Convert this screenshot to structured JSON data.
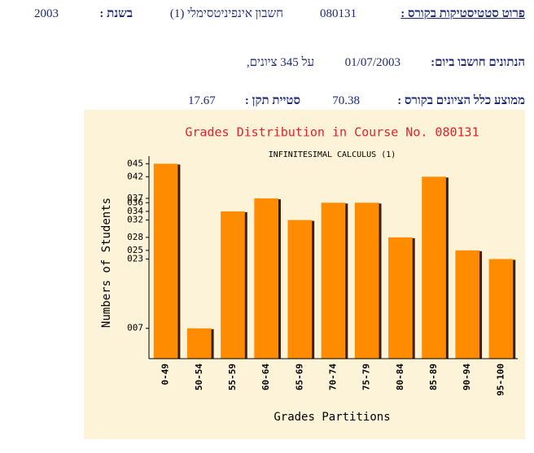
{
  "header": {
    "title_label": "פרוט סטטיסטיקות בקורס :",
    "course_number": "080131",
    "course_name": "חשבון אינפיניטסימלי (1)",
    "year_label": "בשנת :",
    "year": "2003"
  },
  "computed": {
    "label": "הנתונים חושבו ביום:",
    "date": "01/07/2003",
    "count_text": "על 345 ציונים,"
  },
  "stats": {
    "mean_label": "ממוצע כלל הציונים בקורס :",
    "mean": "70.38",
    "std_label": "סטיית תקן :",
    "std": "17.67"
  },
  "chart_data": {
    "type": "bar",
    "title": "Grades Distribution in Course No. 080131",
    "subtitle": "INFINITESIMAL CALCULUS (1)",
    "x_label": "Grades Partitions",
    "y_label": "Numbers of Students",
    "categories": [
      "0-49",
      "50-54",
      "55-59",
      "60-64",
      "65-69",
      "70-74",
      "75-79",
      "80-84",
      "85-89",
      "90-94",
      "95-100"
    ],
    "values": [
      45,
      7,
      34,
      37,
      32,
      36,
      36,
      28,
      42,
      25,
      23
    ],
    "color": "#ff8c00",
    "ylim": [
      0,
      46
    ],
    "yticks": [
      {
        "value": 45,
        "label": "045"
      },
      {
        "value": 42,
        "label": "042"
      },
      {
        "value": 37,
        "label": "037"
      },
      {
        "value": 36,
        "label": "036"
      },
      {
        "value": 34,
        "label": "034"
      },
      {
        "value": 32,
        "label": "032"
      },
      {
        "value": 28,
        "label": "028"
      },
      {
        "value": 25,
        "label": "025"
      },
      {
        "value": 23,
        "label": "023"
      },
      {
        "value": 7,
        "label": "007"
      }
    ]
  }
}
